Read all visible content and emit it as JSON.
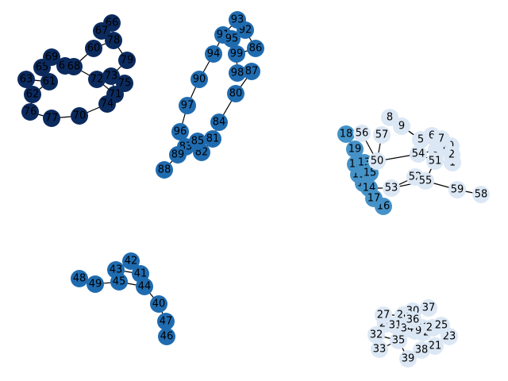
{
  "chart_data": {
    "type": "network",
    "legend": false,
    "grid": false,
    "palette": {
      "navy": "#0b2a5e",
      "blue": "#1f6bb0",
      "mid": "#4592c8",
      "pale": "#dbe7f4"
    },
    "nodes": [
      {
        "id": "0",
        "label": "0",
        "tone": "pale"
      },
      {
        "id": "1",
        "label": "1",
        "tone": "pale"
      },
      {
        "id": "2",
        "label": "2",
        "tone": "pale"
      },
      {
        "id": "3",
        "label": "3",
        "tone": "pale"
      },
      {
        "id": "4",
        "label": "4",
        "tone": "pale"
      },
      {
        "id": "5",
        "label": "5",
        "tone": "pale"
      },
      {
        "id": "6",
        "label": "6",
        "tone": "pale"
      },
      {
        "id": "7",
        "label": "7",
        "tone": "pale"
      },
      {
        "id": "8",
        "label": "8",
        "tone": "pale"
      },
      {
        "id": "9",
        "label": "9",
        "tone": "pale"
      },
      {
        "id": "10",
        "label": "10",
        "tone": "mid"
      },
      {
        "id": "11",
        "label": "11",
        "tone": "mid"
      },
      {
        "id": "12",
        "label": "12",
        "tone": "mid"
      },
      {
        "id": "13",
        "label": "13",
        "tone": "mid"
      },
      {
        "id": "14",
        "label": "14",
        "tone": "mid"
      },
      {
        "id": "15",
        "label": "15",
        "tone": "mid"
      },
      {
        "id": "16",
        "label": "16",
        "tone": "mid"
      },
      {
        "id": "17",
        "label": "17",
        "tone": "mid"
      },
      {
        "id": "18",
        "label": "18",
        "tone": "mid"
      },
      {
        "id": "19",
        "label": "19",
        "tone": "mid"
      },
      {
        "id": "20",
        "label": "20",
        "tone": "pale"
      },
      {
        "id": "21",
        "label": "21",
        "tone": "pale"
      },
      {
        "id": "22",
        "label": "22",
        "tone": "pale"
      },
      {
        "id": "23",
        "label": "23",
        "tone": "pale"
      },
      {
        "id": "24",
        "label": "24",
        "tone": "pale"
      },
      {
        "id": "25",
        "label": "25",
        "tone": "pale"
      },
      {
        "id": "26",
        "label": "26",
        "tone": "pale"
      },
      {
        "id": "27",
        "label": "27",
        "tone": "pale"
      },
      {
        "id": "28",
        "label": "28",
        "tone": "pale"
      },
      {
        "id": "29",
        "label": "29",
        "tone": "pale"
      },
      {
        "id": "30",
        "label": "30",
        "tone": "pale"
      },
      {
        "id": "31",
        "label": "31",
        "tone": "pale"
      },
      {
        "id": "32",
        "label": "32",
        "tone": "pale"
      },
      {
        "id": "33",
        "label": "33",
        "tone": "pale"
      },
      {
        "id": "34",
        "label": "34",
        "tone": "pale"
      },
      {
        "id": "35",
        "label": "35",
        "tone": "pale"
      },
      {
        "id": "36",
        "label": "36",
        "tone": "pale"
      },
      {
        "id": "37",
        "label": "37",
        "tone": "pale"
      },
      {
        "id": "38",
        "label": "38",
        "tone": "pale"
      },
      {
        "id": "39",
        "label": "39",
        "tone": "pale"
      },
      {
        "id": "40",
        "label": "40",
        "tone": "blue"
      },
      {
        "id": "41",
        "label": "41",
        "tone": "blue"
      },
      {
        "id": "42",
        "label": "42",
        "tone": "blue"
      },
      {
        "id": "43",
        "label": "43",
        "tone": "blue"
      },
      {
        "id": "44",
        "label": "44",
        "tone": "blue"
      },
      {
        "id": "45",
        "label": "45",
        "tone": "blue"
      },
      {
        "id": "46",
        "label": "46",
        "tone": "blue"
      },
      {
        "id": "47",
        "label": "47",
        "tone": "blue"
      },
      {
        "id": "48",
        "label": "48",
        "tone": "blue"
      },
      {
        "id": "49",
        "label": "49",
        "tone": "blue"
      },
      {
        "id": "50",
        "label": "50",
        "tone": "pale"
      },
      {
        "id": "51",
        "label": "51",
        "tone": "pale"
      },
      {
        "id": "52",
        "label": "52",
        "tone": "pale"
      },
      {
        "id": "53",
        "label": "53",
        "tone": "pale"
      },
      {
        "id": "54",
        "label": "54",
        "tone": "pale"
      },
      {
        "id": "55",
        "label": "55",
        "tone": "pale"
      },
      {
        "id": "56",
        "label": "56",
        "tone": "pale"
      },
      {
        "id": "57",
        "label": "57",
        "tone": "pale"
      },
      {
        "id": "58",
        "label": "58",
        "tone": "pale"
      },
      {
        "id": "59",
        "label": "59",
        "tone": "pale"
      },
      {
        "id": "60",
        "label": "60",
        "tone": "navy"
      },
      {
        "id": "61",
        "label": "61",
        "tone": "navy"
      },
      {
        "id": "62",
        "label": "62",
        "tone": "navy"
      },
      {
        "id": "63",
        "label": "63",
        "tone": "navy"
      },
      {
        "id": "64",
        "label": "64",
        "tone": "navy"
      },
      {
        "id": "65",
        "label": "65",
        "tone": "navy"
      },
      {
        "id": "66",
        "label": "66",
        "tone": "navy"
      },
      {
        "id": "67",
        "label": "67",
        "tone": "navy"
      },
      {
        "id": "68",
        "label": "68",
        "tone": "navy"
      },
      {
        "id": "69",
        "label": "69",
        "tone": "navy"
      },
      {
        "id": "70",
        "label": "70",
        "tone": "navy"
      },
      {
        "id": "71",
        "label": "71",
        "tone": "navy"
      },
      {
        "id": "72",
        "label": "72",
        "tone": "navy"
      },
      {
        "id": "73",
        "label": "73",
        "tone": "navy"
      },
      {
        "id": "74",
        "label": "74",
        "tone": "navy"
      },
      {
        "id": "75",
        "label": "75",
        "tone": "navy"
      },
      {
        "id": "76",
        "label": "76",
        "tone": "navy"
      },
      {
        "id": "77",
        "label": "77",
        "tone": "navy"
      },
      {
        "id": "78",
        "label": "78",
        "tone": "navy"
      },
      {
        "id": "79",
        "label": "79",
        "tone": "navy"
      },
      {
        "id": "80",
        "label": "80",
        "tone": "blue"
      },
      {
        "id": "81",
        "label": "81",
        "tone": "blue"
      },
      {
        "id": "82",
        "label": "82",
        "tone": "blue"
      },
      {
        "id": "83",
        "label": "83",
        "tone": "blue"
      },
      {
        "id": "84",
        "label": "84",
        "tone": "blue"
      },
      {
        "id": "85",
        "label": "85",
        "tone": "blue"
      },
      {
        "id": "86",
        "label": "86",
        "tone": "blue"
      },
      {
        "id": "87",
        "label": "87",
        "tone": "blue"
      },
      {
        "id": "88",
        "label": "88",
        "tone": "blue"
      },
      {
        "id": "89",
        "label": "89",
        "tone": "blue"
      },
      {
        "id": "90",
        "label": "90",
        "tone": "blue"
      },
      {
        "id": "91",
        "label": "91",
        "tone": "blue"
      },
      {
        "id": "92",
        "label": "92",
        "tone": "blue"
      },
      {
        "id": "93",
        "label": "93",
        "tone": "blue"
      },
      {
        "id": "94",
        "label": "94",
        "tone": "blue"
      },
      {
        "id": "95",
        "label": "95",
        "tone": "blue"
      },
      {
        "id": "96",
        "label": "96",
        "tone": "blue"
      },
      {
        "id": "97",
        "label": "97",
        "tone": "blue"
      },
      {
        "id": "98",
        "label": "98",
        "tone": "blue"
      },
      {
        "id": "99",
        "label": "99",
        "tone": "blue"
      }
    ],
    "edges": [
      [
        "66",
        "67"
      ],
      [
        "67",
        "78"
      ],
      [
        "78",
        "60"
      ],
      [
        "60",
        "68"
      ],
      [
        "68",
        "64"
      ],
      [
        "64",
        "69"
      ],
      [
        "69",
        "65"
      ],
      [
        "65",
        "61"
      ],
      [
        "61",
        "63"
      ],
      [
        "61",
        "62"
      ],
      [
        "62",
        "76"
      ],
      [
        "76",
        "77"
      ],
      [
        "77",
        "70"
      ],
      [
        "70",
        "74"
      ],
      [
        "74",
        "71"
      ],
      [
        "71",
        "73"
      ],
      [
        "73",
        "75"
      ],
      [
        "75",
        "72"
      ],
      [
        "72",
        "68"
      ],
      [
        "73",
        "79"
      ],
      [
        "79",
        "78"
      ],
      [
        "71",
        "75"
      ],
      [
        "72",
        "71"
      ],
      [
        "93",
        "91"
      ],
      [
        "91",
        "95"
      ],
      [
        "95",
        "92"
      ],
      [
        "92",
        "86"
      ],
      [
        "86",
        "99"
      ],
      [
        "99",
        "98"
      ],
      [
        "98",
        "87"
      ],
      [
        "87",
        "80"
      ],
      [
        "91",
        "94"
      ],
      [
        "94",
        "90"
      ],
      [
        "90",
        "97"
      ],
      [
        "97",
        "96"
      ],
      [
        "96",
        "83"
      ],
      [
        "83",
        "85"
      ],
      [
        "85",
        "82"
      ],
      [
        "82",
        "81"
      ],
      [
        "81",
        "84"
      ],
      [
        "84",
        "80"
      ],
      [
        "83",
        "89"
      ],
      [
        "89",
        "88"
      ],
      [
        "89",
        "81"
      ],
      [
        "8",
        "5"
      ],
      [
        "9",
        "5"
      ],
      [
        "5",
        "6"
      ],
      [
        "5",
        "54"
      ],
      [
        "6",
        "7"
      ],
      [
        "6",
        "3"
      ],
      [
        "3",
        "4"
      ],
      [
        "4",
        "0"
      ],
      [
        "0",
        "2"
      ],
      [
        "2",
        "1"
      ],
      [
        "3",
        "54"
      ],
      [
        "54",
        "51"
      ],
      [
        "54",
        "50"
      ],
      [
        "57",
        "50"
      ],
      [
        "56",
        "50"
      ],
      [
        "51",
        "55"
      ],
      [
        "55",
        "52"
      ],
      [
        "52",
        "53"
      ],
      [
        "53",
        "55"
      ],
      [
        "55",
        "59"
      ],
      [
        "59",
        "58"
      ],
      [
        "53",
        "14"
      ],
      [
        "50",
        "13"
      ],
      [
        "50",
        "12"
      ],
      [
        "18",
        "19"
      ],
      [
        "19",
        "12"
      ],
      [
        "12",
        "13"
      ],
      [
        "13",
        "15"
      ],
      [
        "12",
        "11"
      ],
      [
        "11",
        "15"
      ],
      [
        "15",
        "10"
      ],
      [
        "10",
        "14"
      ],
      [
        "14",
        "17"
      ],
      [
        "17",
        "16"
      ],
      [
        "11",
        "10"
      ],
      [
        "16",
        "14"
      ],
      [
        "48",
        "49"
      ],
      [
        "49",
        "45"
      ],
      [
        "45",
        "43"
      ],
      [
        "43",
        "42"
      ],
      [
        "42",
        "41"
      ],
      [
        "41",
        "44"
      ],
      [
        "44",
        "45"
      ],
      [
        "44",
        "40"
      ],
      [
        "40",
        "47"
      ],
      [
        "47",
        "46"
      ],
      [
        "43",
        "41"
      ],
      [
        "27",
        "28"
      ],
      [
        "28",
        "30"
      ],
      [
        "30",
        "37"
      ],
      [
        "26",
        "31"
      ],
      [
        "31",
        "36"
      ],
      [
        "36",
        "34"
      ],
      [
        "34",
        "29"
      ],
      [
        "29",
        "22"
      ],
      [
        "22",
        "24"
      ],
      [
        "24",
        "25"
      ],
      [
        "25",
        "23"
      ],
      [
        "23",
        "21"
      ],
      [
        "21",
        "38"
      ],
      [
        "38",
        "39"
      ],
      [
        "39",
        "35"
      ],
      [
        "35",
        "33"
      ],
      [
        "32",
        "35"
      ],
      [
        "29",
        "20"
      ],
      [
        "20",
        "22"
      ],
      [
        "31",
        "35"
      ],
      [
        "30",
        "36"
      ]
    ]
  }
}
